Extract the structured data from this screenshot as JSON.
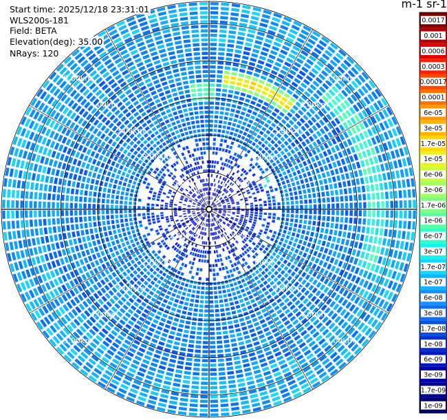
{
  "info": {
    "start_time": "Start time: 2025/12/18 23:31:01",
    "device": "WLS200s-181",
    "field": "Field: BETA",
    "elevation": "Elevation(deg): 35.00",
    "nrays": "NRays: 120"
  },
  "colorbar": {
    "title": "m-1 sr-1",
    "labels": [
      "0.0017",
      "0.001",
      "0.0006",
      "0.0003",
      "0.00017",
      "0.0001",
      "6e-05",
      "3e-05",
      "1.7e-05",
      "1e-05",
      "6e-06",
      "3e-06",
      "1.7e-06",
      "1e-06",
      "6e-07",
      "3e-07",
      "1.7e-07",
      "1e-07",
      "6e-08",
      "3e-08",
      "1.7e-08",
      "1e-08",
      "6e-09",
      "3e-09",
      "1.7e-09",
      "1e-09"
    ],
    "colors": [
      "#800000",
      "#b00000",
      "#e00000",
      "#ff2000",
      "#ff4a00",
      "#ff7000",
      "#ff9800",
      "#ffb400",
      "#ffd800",
      "#f0f020",
      "#c8ff38",
      "#a0ff60",
      "#7cff80",
      "#58ffa4",
      "#30ffc8",
      "#14f4ec",
      "#10d8ff",
      "#12b4ff",
      "#1890ff",
      "#1070f0",
      "#0c50e0",
      "#0830d0",
      "#0418c0",
      "#0000b0",
      "#000090",
      "#000070"
    ]
  },
  "range_rings": {
    "labels": [
      "1.00km",
      "2.00km",
      "3.00km",
      "4.00km",
      "5.00km"
    ]
  },
  "chart_data": {
    "type": "heatmap",
    "projection": "polar (PPI)",
    "rays": 120,
    "elevation_deg": 35.0,
    "range_rings_km": [
      1,
      2,
      3,
      4,
      5
    ],
    "max_range_km": 5.6,
    "colorscale": "log jet",
    "value_range": [
      1e-09,
      0.0017
    ],
    "units": "m-1 sr-1",
    "background_level": "3e-08 to 1e-07 (blue/cyan)",
    "features": [
      {
        "region": "north-northeast arc, about 3.5 km range",
        "azimuth_deg": [
          5,
          40
        ],
        "level": "1.7e-06 to 1e-05"
      },
      {
        "region": "east arc, about 4.3 to 4.6 km range",
        "azimuth_deg": [
          45,
          110
        ],
        "level": "1.7e-07 to 3e-06"
      },
      {
        "region": "north, near 3 km range",
        "azimuth_deg": [
          350,
          2
        ],
        "level": "3e-07 to 1e-06"
      },
      {
        "region": "near-field, inside 2 km",
        "level": "3e-09 to 3e-08"
      }
    ]
  }
}
